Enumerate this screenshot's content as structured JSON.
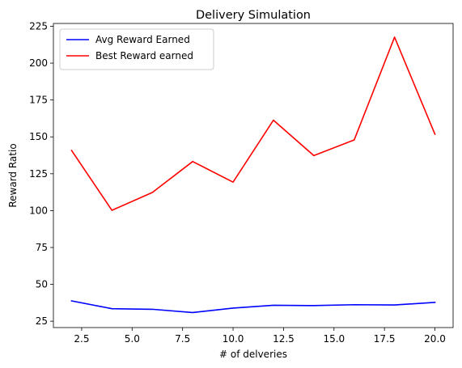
{
  "chart_data": {
    "type": "line",
    "title": "Delivery Simulation",
    "xlabel": "# of delveries",
    "ylabel": "Reward Ratio",
    "x": [
      2,
      4,
      6,
      8,
      10,
      12,
      14,
      16,
      18,
      20
    ],
    "series": [
      {
        "name": "Avg Reward Earned",
        "color": "#0000ff",
        "values": [
          38.8,
          33.5,
          33.1,
          30.9,
          33.9,
          35.8,
          35.6,
          36.2,
          36.0,
          37.8
        ]
      },
      {
        "name": "Best Reward earned",
        "color": "#ff0000",
        "values": [
          140.8,
          100.2,
          112.3,
          133.3,
          119.3,
          161.3,
          137.3,
          147.9,
          217.6,
          151.8
        ]
      }
    ],
    "xlim": [
      1.1,
      20.9
    ],
    "ylim": [
      20.7,
      226.9
    ],
    "xticks": [
      2.5,
      5.0,
      7.5,
      10.0,
      12.5,
      15.0,
      17.5,
      20.0
    ],
    "xtick_labels": [
      "2.5",
      "5.0",
      "7.5",
      "10.0",
      "12.5",
      "15.0",
      "17.5",
      "20.0"
    ],
    "yticks": [
      25,
      50,
      75,
      100,
      125,
      150,
      175,
      200,
      225
    ],
    "ytick_labels": [
      "25",
      "50",
      "75",
      "100",
      "125",
      "150",
      "175",
      "200",
      "225"
    ],
    "grid": false,
    "legend_position": "upper-left"
  }
}
